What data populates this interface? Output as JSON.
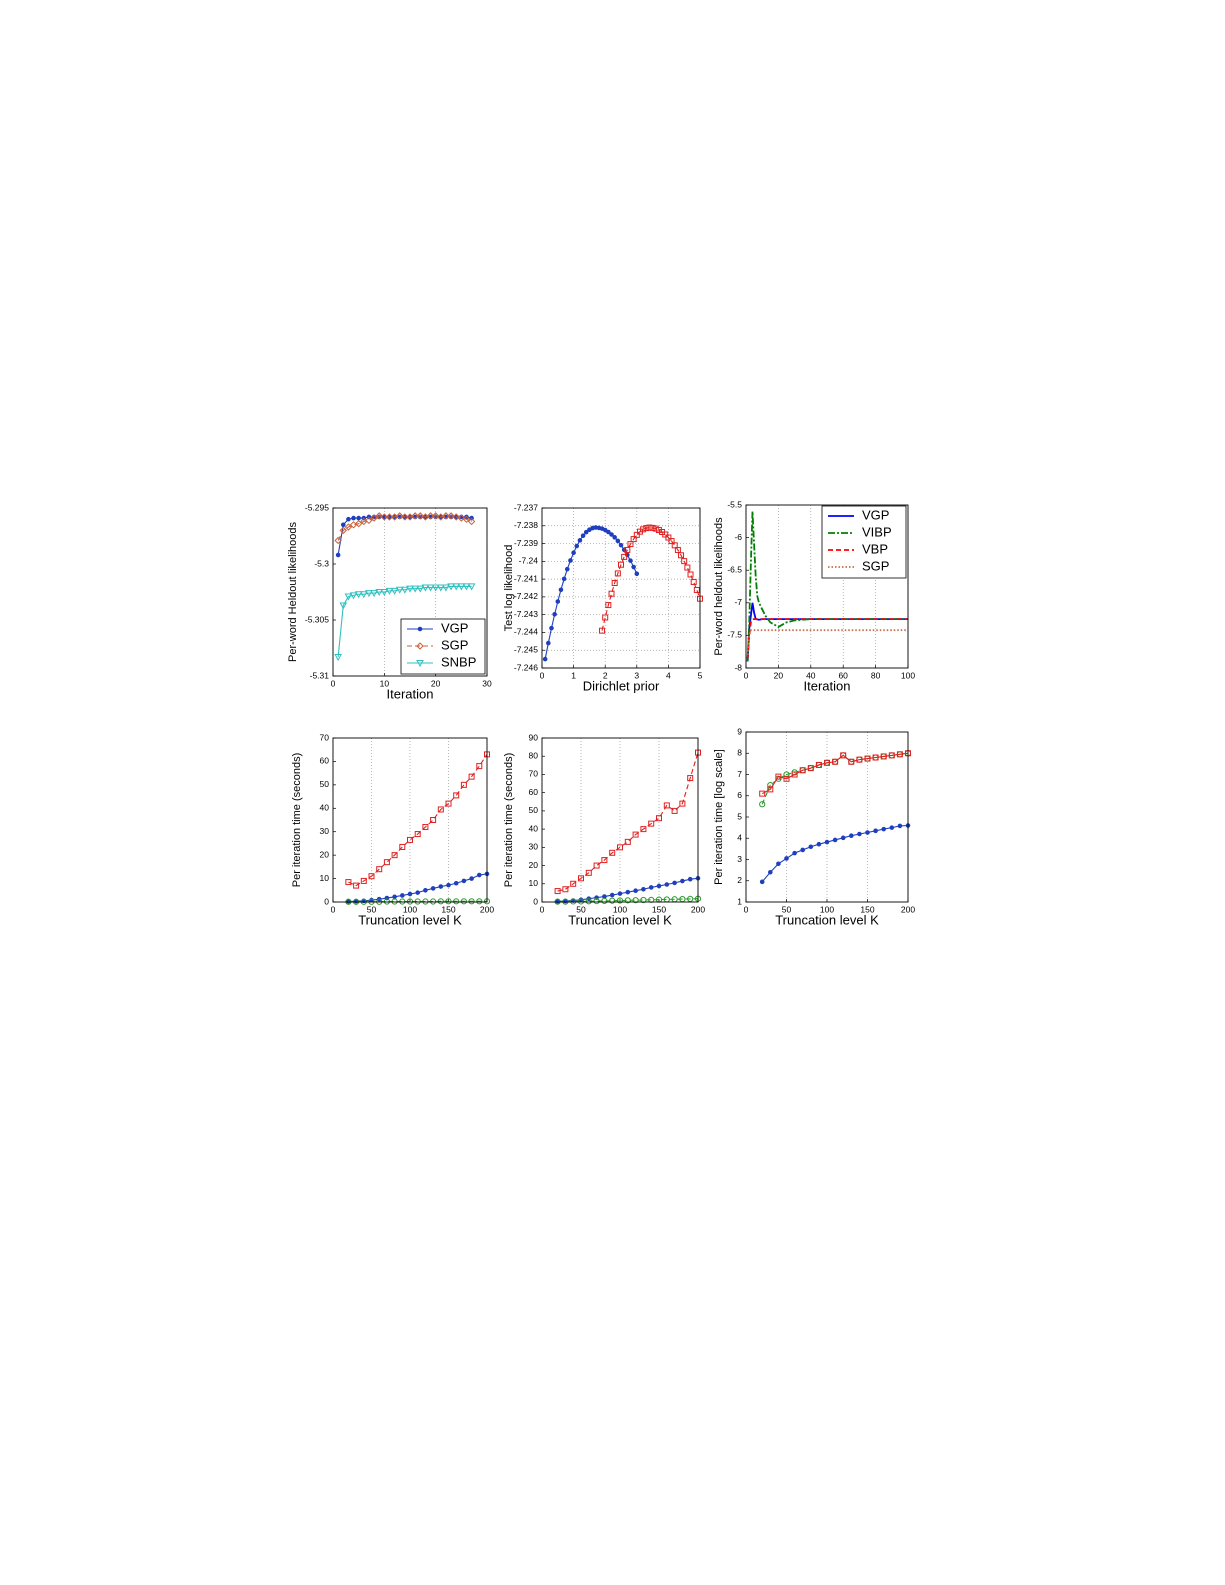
{
  "chart_data": [
    {
      "type": "line",
      "xlabel": "Iteration",
      "ylabel": "Per-word Heldout likelihoods",
      "xlim": [
        0,
        30
      ],
      "xticks": [
        0,
        10,
        20,
        30
      ],
      "ylim": [
        -5.31,
        -5.295
      ],
      "yticks": [
        -5.31,
        -5.305,
        -5.3,
        -5.295
      ],
      "grid": "x",
      "legend": "lower right",
      "x": [
        1,
        2,
        3,
        4,
        5,
        6,
        7,
        8,
        9,
        10,
        11,
        12,
        13,
        14,
        15,
        16,
        17,
        18,
        19,
        20,
        21,
        22,
        23,
        24,
        25,
        26,
        27
      ],
      "series": [
        {
          "name": "VGP",
          "color": "#1f3fbf",
          "marker": "dot",
          "dash": "solid",
          "values": [
            -5.2992,
            -5.2965,
            -5.296,
            -5.2959,
            -5.2959,
            -5.2959,
            -5.2958,
            -5.2958,
            -5.2958,
            -5.2958,
            -5.2958,
            -5.2958,
            -5.2958,
            -5.2958,
            -5.2958,
            -5.2958,
            -5.2958,
            -5.2958,
            -5.2958,
            -5.2958,
            -5.2958,
            -5.2958,
            -5.2958,
            -5.2958,
            -5.2958,
            -5.2958,
            -5.2959
          ]
        },
        {
          "name": "SGP",
          "color": "#c8603a",
          "marker": "diamond",
          "dash": "dashed",
          "values": [
            -5.2979,
            -5.297,
            -5.2967,
            -5.2965,
            -5.2964,
            -5.2962,
            -5.2961,
            -5.2959,
            -5.2957,
            -5.2958,
            -5.2958,
            -5.2958,
            -5.2957,
            -5.2958,
            -5.2958,
            -5.2957,
            -5.2957,
            -5.2958,
            -5.2957,
            -5.2957,
            -5.2958,
            -5.2957,
            -5.2957,
            -5.2958,
            -5.2959,
            -5.296,
            -5.2962
          ]
        },
        {
          "name": "SNBP",
          "color": "#30c0c0",
          "marker": "triangle",
          "dash": "solid",
          "values": [
            -5.3083,
            -5.3037,
            -5.3029,
            -5.3028,
            -5.3027,
            -5.3027,
            -5.3026,
            -5.3026,
            -5.3025,
            -5.3025,
            -5.3024,
            -5.3024,
            -5.3023,
            -5.3023,
            -5.3022,
            -5.3022,
            -5.3022,
            -5.3021,
            -5.3021,
            -5.3021,
            -5.3021,
            -5.3021,
            -5.302,
            -5.302,
            -5.302,
            -5.302,
            -5.302
          ]
        }
      ]
    },
    {
      "type": "line",
      "xlabel": "Dirichlet prior",
      "ylabel": "Test log likelihood",
      "xlim": [
        0,
        5
      ],
      "xticks": [
        0,
        1,
        2,
        3,
        4,
        5
      ],
      "ylim": [
        -7.246,
        -7.237
      ],
      "yticks": [
        -7.246,
        -7.245,
        -7.244,
        -7.243,
        -7.242,
        -7.241,
        -7.24,
        -7.239,
        -7.238,
        -7.237
      ],
      "grid": "both",
      "series": [
        {
          "color": "#1f3fbf",
          "marker": "dot",
          "dash": "solid",
          "x": [
            0.1,
            0.2,
            0.3,
            0.4,
            0.5,
            0.6,
            0.7,
            0.8,
            0.9,
            1.0,
            1.1,
            1.2,
            1.3,
            1.4,
            1.5,
            1.6,
            1.7,
            1.8,
            1.9,
            2.0,
            2.1,
            2.2,
            2.3,
            2.4,
            2.5,
            2.6,
            2.7,
            2.8,
            2.9,
            3.0
          ],
          "values": [
            -7.2455,
            -7.2446,
            -7.24376,
            -7.24298,
            -7.24226,
            -7.2416,
            -7.24099,
            -7.24044,
            -7.23995,
            -7.23952,
            -7.23914,
            -7.23882,
            -7.23856,
            -7.23836,
            -7.23822,
            -7.23813,
            -7.2381,
            -7.23812,
            -7.23816,
            -7.23824,
            -7.23835,
            -7.23849,
            -7.23865,
            -7.23885,
            -7.23909,
            -7.23935,
            -7.23964,
            -7.23996,
            -7.24032,
            -7.2407
          ]
        },
        {
          "color": "#e02020",
          "marker": "square",
          "dash": "dashed",
          "x": [
            1.9,
            2.0,
            2.1,
            2.2,
            2.3,
            2.4,
            2.5,
            2.6,
            2.7,
            2.8,
            2.9,
            3.0,
            3.1,
            3.2,
            3.3,
            3.4,
            3.5,
            3.6,
            3.7,
            3.8,
            3.9,
            4.0,
            4.1,
            4.2,
            4.3,
            4.4,
            4.5,
            4.6,
            4.7,
            4.8,
            4.9,
            5.0
          ],
          "values": [
            -7.2439,
            -7.24316,
            -7.24246,
            -7.24182,
            -7.24122,
            -7.24068,
            -7.24019,
            -7.23975,
            -7.23936,
            -7.23903,
            -7.23875,
            -7.23851,
            -7.23833,
            -7.2382,
            -7.23813,
            -7.2381,
            -7.23812,
            -7.23816,
            -7.23824,
            -7.23835,
            -7.23849,
            -7.23866,
            -7.23886,
            -7.2391,
            -7.23936,
            -7.23966,
            -7.23999,
            -7.24035,
            -7.24074,
            -7.24116,
            -7.24161,
            -7.2421
          ]
        }
      ]
    },
    {
      "type": "line",
      "xlabel": "Iteration",
      "ylabel": "Per-word heldout likelihoods",
      "xlim": [
        0,
        100
      ],
      "xticks": [
        0,
        20,
        40,
        60,
        80,
        100
      ],
      "ylim": [
        -8,
        -5.5
      ],
      "yticks": [
        -8,
        -7.5,
        -7,
        -6.5,
        -6,
        -5.5
      ],
      "grid": "x",
      "legend": "upper right",
      "series": [
        {
          "name": "VGP",
          "color": "#0000ff",
          "marker": "none",
          "dash": "solid",
          "x": [
            1,
            2,
            3,
            4,
            5,
            6,
            8,
            10,
            20,
            40,
            60,
            80,
            100
          ],
          "values": [
            -7.9,
            -7.4,
            -7.2,
            -7.0,
            -7.15,
            -7.25,
            -7.26,
            -7.25,
            -7.25,
            -7.25,
            -7.25,
            -7.25,
            -7.25
          ]
        },
        {
          "name": "VIBP",
          "color": "#008000",
          "marker": "none",
          "dash": "dashdot",
          "x": [
            1,
            2,
            3,
            4,
            5,
            6,
            7,
            8,
            10,
            12,
            15,
            20,
            25,
            30,
            40,
            60,
            80,
            100
          ],
          "values": [
            -7.9,
            -7.3,
            -6.4,
            -5.6,
            -6.1,
            -6.6,
            -6.9,
            -7.0,
            -7.1,
            -7.2,
            -7.3,
            -7.37,
            -7.3,
            -7.27,
            -7.25,
            -7.25,
            -7.25,
            -7.25
          ]
        },
        {
          "name": "VBP",
          "color": "#ff0000",
          "marker": "none",
          "dash": "dashed",
          "x": [
            1,
            2,
            3,
            4,
            6,
            10,
            20,
            40,
            60,
            80,
            100
          ],
          "values": [
            -7.85,
            -7.5,
            -7.3,
            -7.25,
            -7.25,
            -7.25,
            -7.25,
            -7.25,
            -7.25,
            -7.25,
            -7.25
          ]
        },
        {
          "name": "SGP",
          "color": "#c07050",
          "marker": "none",
          "dash": "dotted",
          "x": [
            1,
            2,
            3,
            5,
            10,
            100
          ],
          "values": [
            -7.8,
            -7.5,
            -7.42,
            -7.42,
            -7.42,
            -7.42
          ]
        }
      ]
    },
    {
      "type": "line",
      "xlabel": "Truncation level K",
      "ylabel": "Per iteration time (seconds)",
      "xlim": [
        0,
        200
      ],
      "xticks": [
        0,
        50,
        100,
        150,
        200
      ],
      "ylim": [
        0,
        70
      ],
      "yticks": [
        0,
        10,
        20,
        30,
        40,
        50,
        60,
        70
      ],
      "grid": "x",
      "x": [
        20,
        30,
        40,
        50,
        60,
        70,
        80,
        90,
        100,
        110,
        120,
        130,
        140,
        150,
        160,
        170,
        180,
        190,
        200
      ],
      "series": [
        {
          "color": "#e02020",
          "marker": "square",
          "dash": "dashed",
          "values": [
            8.5,
            7,
            9,
            11,
            14,
            17,
            20,
            23.5,
            26.5,
            29,
            32,
            35,
            39.5,
            42,
            45.5,
            50,
            53.5,
            58,
            63
          ]
        },
        {
          "color": "#1f3fbf",
          "marker": "dot",
          "dash": "solid",
          "values": [
            0.2,
            0.3,
            0.5,
            0.8,
            1.2,
            1.7,
            2.2,
            2.8,
            3.4,
            4,
            5,
            5.8,
            6.6,
            7.2,
            8,
            9,
            10,
            11.5,
            12
          ]
        },
        {
          "color": "#2a9a2a",
          "marker": "circle",
          "dash": "dashed",
          "values": [
            0.1,
            0.1,
            0.1,
            0.1,
            0.1,
            0.2,
            0.2,
            0.2,
            0.2,
            0.2,
            0.2,
            0.2,
            0.3,
            0.3,
            0.3,
            0.3,
            0.3,
            0.3,
            0.3
          ]
        }
      ]
    },
    {
      "type": "line",
      "xlabel": "Truncation level K",
      "ylabel": "Per iteration time (seconds)",
      "xlim": [
        0,
        200
      ],
      "xticks": [
        0,
        50,
        100,
        150,
        200
      ],
      "ylim": [
        0,
        90
      ],
      "yticks": [
        0,
        10,
        20,
        30,
        40,
        50,
        60,
        70,
        80,
        90
      ],
      "grid": "x",
      "x": [
        20,
        30,
        40,
        50,
        60,
        70,
        80,
        90,
        100,
        110,
        120,
        130,
        140,
        150,
        160,
        170,
        180,
        190,
        200
      ],
      "series": [
        {
          "color": "#e02020",
          "marker": "square",
          "dash": "dashed",
          "values": [
            6,
            7,
            10,
            13,
            16,
            20,
            23,
            27,
            30,
            33,
            37,
            40,
            43,
            46,
            53,
            50,
            54,
            68,
            82
          ]
        },
        {
          "color": "#1f3fbf",
          "marker": "dot",
          "dash": "solid",
          "values": [
            0.3,
            0.5,
            0.8,
            1.2,
            1.8,
            2.4,
            3,
            3.8,
            4.6,
            5.4,
            6.2,
            7,
            8,
            8.8,
            9.6,
            10.5,
            11.5,
            12.5,
            13
          ]
        },
        {
          "color": "#2a9a2a",
          "marker": "circle",
          "dash": "dashed",
          "values": [
            0.2,
            0.2,
            0.3,
            0.3,
            0.4,
            0.5,
            0.6,
            0.7,
            0.8,
            0.9,
            1,
            1.1,
            1.2,
            1.3,
            1.4,
            1.5,
            1.6,
            1.7,
            1.8
          ]
        }
      ]
    },
    {
      "type": "line",
      "xlabel": "Truncation level K",
      "ylabel": "Per iteration time [log scale]",
      "xlim": [
        0,
        200
      ],
      "xticks": [
        0,
        50,
        100,
        150,
        200
      ],
      "ylim": [
        1,
        9
      ],
      "yticks": [
        1,
        2,
        3,
        4,
        5,
        6,
        7,
        8,
        9
      ],
      "grid": "x",
      "x": [
        20,
        30,
        40,
        50,
        60,
        70,
        80,
        90,
        100,
        110,
        120,
        130,
        140,
        150,
        160,
        170,
        180,
        190,
        200
      ],
      "series": [
        {
          "color": "#2a9a2a",
          "marker": "circle",
          "dash": "dashed",
          "values": [
            5.6,
            6.5,
            6.8,
            7,
            7.1,
            7.2,
            7.3,
            7.45,
            7.55,
            7.6,
            7.9,
            7.6,
            7.7,
            7.75,
            7.8,
            7.85,
            7.9,
            7.95,
            8
          ]
        },
        {
          "color": "#e02020",
          "marker": "square",
          "dash": "solid",
          "values": [
            6.1,
            6.3,
            6.9,
            6.8,
            7,
            7.2,
            7.3,
            7.45,
            7.55,
            7.6,
            7.9,
            7.6,
            7.7,
            7.75,
            7.8,
            7.85,
            7.9,
            7.95,
            8
          ]
        },
        {
          "color": "#1f3fbf",
          "marker": "dot",
          "dash": "solid",
          "values": [
            1.95,
            2.4,
            2.8,
            3.05,
            3.3,
            3.45,
            3.6,
            3.72,
            3.82,
            3.92,
            4.02,
            4.12,
            4.2,
            4.27,
            4.35,
            4.43,
            4.5,
            4.58,
            4.6
          ]
        }
      ]
    }
  ]
}
